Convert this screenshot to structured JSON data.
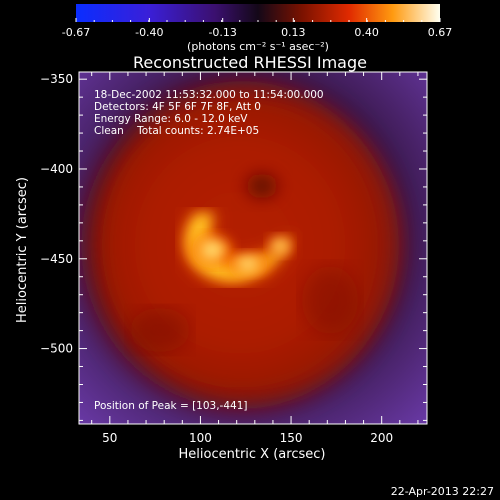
{
  "chart_data": {
    "type": "heatmap",
    "title": "Reconstructed RHESSI Image",
    "xlabel": "Heliocentric X (arcsec)",
    "ylabel": "Heliocentric Y (arcsec)",
    "xlim": [
      33,
      225
    ],
    "ylim": [
      -542,
      -346
    ],
    "x_ticks": [
      50,
      100,
      150,
      200
    ],
    "y_ticks": [
      -350,
      -400,
      -450,
      -500
    ],
    "colorbar": {
      "label": "(photons cm⁻² s⁻¹ asec⁻²)",
      "range": [
        -0.67,
        0.67
      ],
      "ticks": [
        "-0.67",
        "-0.40",
        "-0.13",
        "0.13",
        "0.40",
        "0.67"
      ]
    },
    "annotations": [
      "18-Dec-2002 11:53:32.000 to 11:54:00.000",
      "Detectors: 4F 5F 6F 7F 8F, Att 0",
      "Energy Range: 6.0 - 12.0 keV",
      "Clean    Total counts: 2.74E+05"
    ],
    "peak_label": "Position of Peak = [103,-441]",
    "peak": {
      "x": 103,
      "y": -441,
      "value": 0.67
    },
    "timestamp": "22-Apr-2013 22:27"
  }
}
